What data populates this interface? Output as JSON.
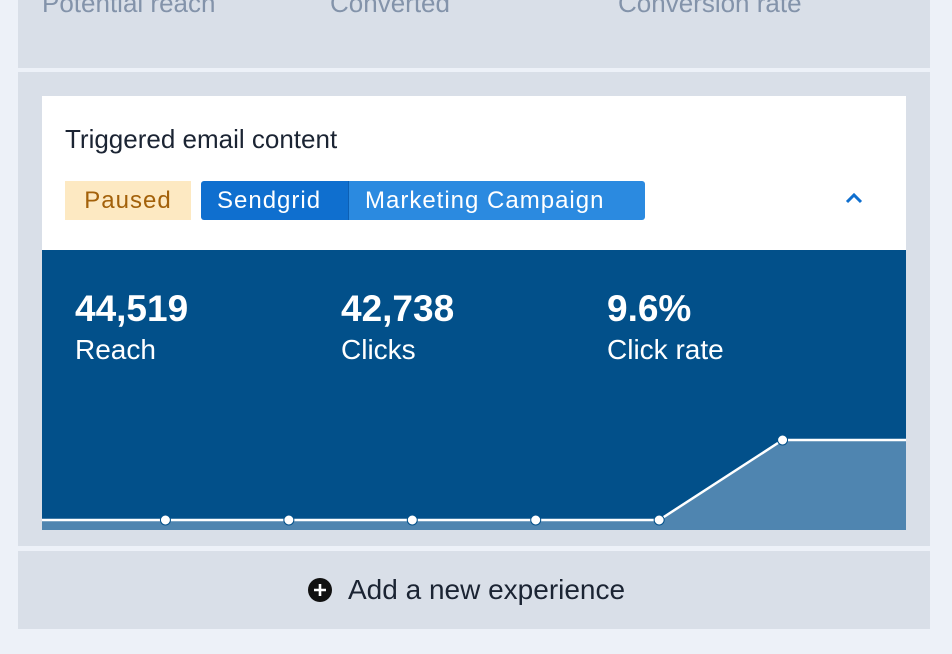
{
  "summary": {
    "labels": [
      "Potential reach",
      "Converted",
      "Conversion rate"
    ]
  },
  "card": {
    "title": "Triggered email content",
    "status": "Paused",
    "tags": [
      "Sendgrid",
      "Marketing Campaign"
    ],
    "stats": [
      {
        "value": "44,519",
        "label": "Reach"
      },
      {
        "value": "42,738",
        "label": "Clicks"
      },
      {
        "value": "9.6%",
        "label": "Click rate"
      }
    ],
    "sparkline": {
      "values": [
        0,
        0,
        0,
        0,
        0,
        0,
        1,
        1
      ]
    }
  },
  "add_button": "Add a new experience"
}
